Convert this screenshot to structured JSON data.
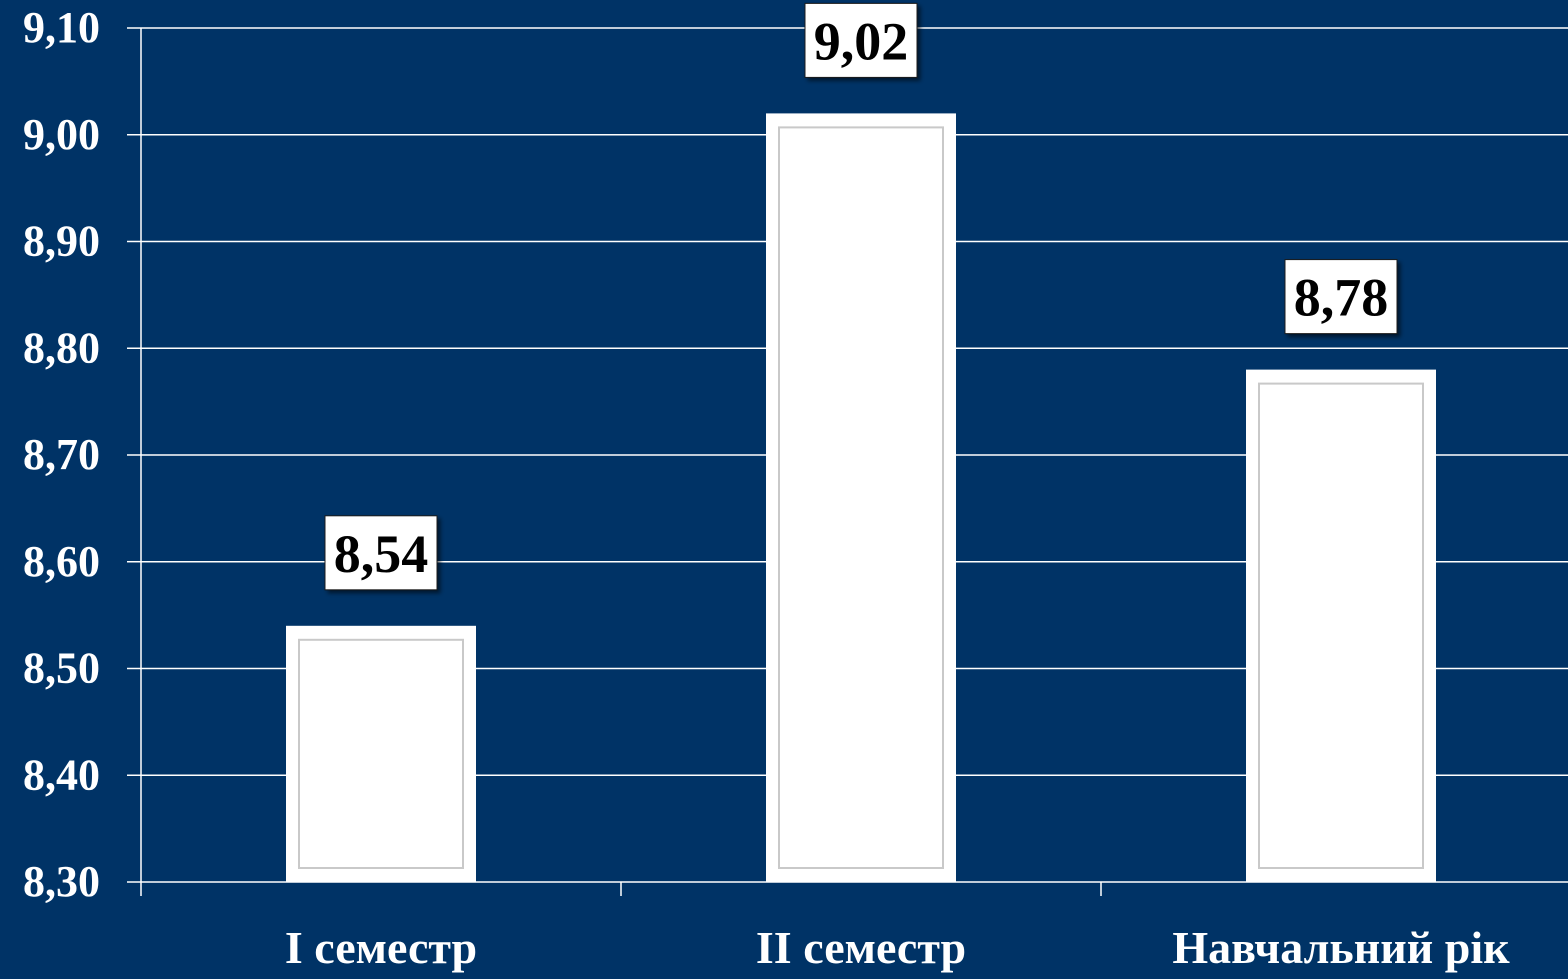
{
  "colors": {
    "background": "#003366",
    "gridline": "#ffffff",
    "axis": "#ffffff",
    "bar_fill": "#ffffff",
    "bar_inner_border": "#c9c9c9",
    "tick_label": "#ffffff",
    "data_label_text": "#000000",
    "data_label_box": "#ffffff"
  },
  "chart_data": {
    "type": "bar",
    "categories": [
      "І семестр",
      "ІІ семестр",
      "Навчальний рік"
    ],
    "values": [
      8.54,
      9.02,
      8.78
    ],
    "data_labels": [
      "8,54",
      "9,02",
      "8,78"
    ],
    "y_ticks": [
      "8,30",
      "8,40",
      "8,50",
      "8,60",
      "8,70",
      "8,80",
      "8,90",
      "9,00",
      "9,10"
    ],
    "ylim": [
      8.3,
      9.1
    ],
    "y_step": 0.1,
    "grid": true,
    "legend": "none",
    "title": "",
    "xlabel": "",
    "ylabel": ""
  }
}
